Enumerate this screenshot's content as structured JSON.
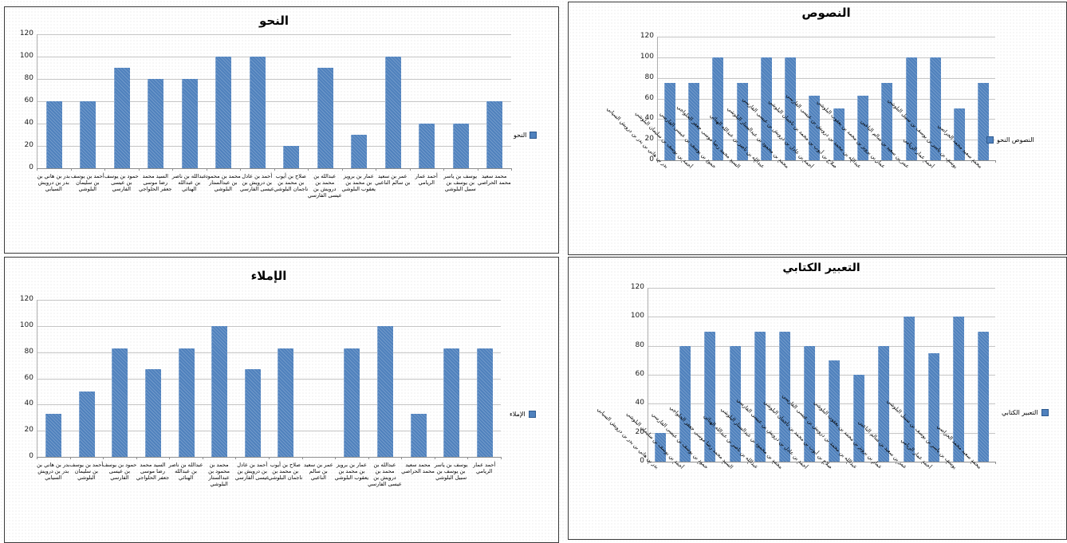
{
  "colors": {
    "bar": "#4f81bd",
    "grid": "#c6c6c6",
    "axis": "#8f8f8f",
    "panel_border": "#3a3a3a",
    "text": "#000000"
  },
  "students_forward": [
    "بدر بن هاني بن بدر بن درويش السيابي",
    "أحمد بن يوسف بن سليمان البلوشي",
    "حمود بن يوسف بن عيسى الفارسي",
    "السيد محمد رضا موسى جعفر الحلواجي",
    "عبدالله بن ناصر بن عبدالله الهنائي",
    "محمد بن محمود بن عبدالستار البلوشي",
    "أحمد بن عادل بن درويش بن عيسى الفارسي",
    "صلاح بن أيوب بن محمد بن ناجمان البلوشي",
    "عبدالله بن محمد بن درويش بن عيسى الفارسي",
    "عمار بن برويز بن محمد بن يعقوب البلوشي",
    "عمر بن سعيد بن سالم الناعبي",
    "أحمد عمار الريامي",
    "يوسف بن ياسر بن يوسف بن سبيل البلوشي",
    "محمد سعيد محمد الحراصي"
  ],
  "chart_data": [
    {
      "type": "bar",
      "title": "النحو",
      "legend": "النحو",
      "legend_marker_side": "left",
      "label_style": "stacked",
      "ylim": [
        0,
        120
      ],
      "yticks": [
        0,
        20,
        40,
        60,
        80,
        100,
        120
      ],
      "grid": true,
      "legend_position": "right-middle",
      "categories": [
        "بدر بن هاني بن بدر بن درويش السيابي",
        "أحمد بن يوسف بن سليمان البلوشي",
        "حمود بن يوسف بن عيسى الفارسي",
        "السيد محمد رضا موسى جعفر الحلواجي",
        "عبدالله بن ناصر بن عبدالله الهنائي",
        "محمد بن محمود بن عبدالستار البلوشي",
        "أحمد بن عادل بن درويش بن عيسى الفارسي",
        "صلاح بن أيوب بن محمد بن ناجمان البلوشي",
        "عبدالله بن محمد بن درويش بن عيسى الفارسي",
        "عمار بن برويز بن محمد بن يعقوب البلوشي",
        "عمر بن سعيد بن سالم الناعبي",
        "أحمد عمار الريامي",
        "يوسف بن ياسر بن يوسف بن سبيل البلوشي",
        "محمد سعيد محمد الحراصي"
      ],
      "values": [
        60,
        60,
        90,
        80,
        80,
        100,
        100,
        20,
        90,
        30,
        100,
        40,
        40,
        60
      ]
    },
    {
      "type": "bar",
      "title": "النصوص",
      "legend": "النصوص النحو",
      "legend_marker_side": "right",
      "label_style": "rotated",
      "ylim": [
        0,
        120
      ],
      "yticks": [
        0,
        20,
        40,
        60,
        80,
        100,
        120
      ],
      "grid": true,
      "legend_position": "right-middle",
      "categories": [
        "بدر بن هاني بن بدر بن درويش السيابي",
        "أحمد بن يوسف بن سليمان البلوشي",
        "حمود بن يوسف بن عيسى الفارسي",
        "السيد محمد رضا موسى جعفر الحلواجي",
        "عبدالله بن ناصر بن عبدالله الهنائي",
        "محمد بن محمود بن عبدالستار البلوشي",
        "أحمد بن عادل بن درويش بن عيسى الفارسي",
        "صلاح بن أيوب بن محمد بن ناجمان البلوشي",
        "عبدالله بن محمد بن درويش بن عيسى الفارسي",
        "عمار بن برويز بن محمد بن يعقوب البلوشي",
        "عمر بن سعيد بن سالم الناعبي",
        "أحمد عمار الريامي",
        "يوسف بن ياسر بن يوسف بن سبيل البلوشي",
        "محمد سعيد محمد الحراصي"
      ],
      "values": [
        75,
        75,
        100,
        75,
        100,
        100,
        63,
        50,
        63,
        75,
        100,
        100,
        50,
        75
      ]
    },
    {
      "type": "bar",
      "title": "الإملاء",
      "legend": "الإملاء",
      "legend_marker_side": "left",
      "label_style": "stacked",
      "ylim": [
        0,
        120
      ],
      "yticks": [
        0,
        20,
        40,
        60,
        80,
        100,
        120
      ],
      "grid": true,
      "legend_position": "right-middle",
      "categories": [
        "بدر بن هاني بن بدر بن درويش السيابي",
        "أحمد بن يوسف بن سليمان البلوشي",
        "حمود بن يوسف بن عيسى الفارسي",
        "السيد محمد رضا موسى جعفر الحلواجي",
        "عبدالله بن ناصر بن عبدالله الهنائي",
        "محمد بن محمود بن عبدالستار البلوشي",
        "أحمد بن عادل بن درويش بن عيسى الفارسي",
        "صلاح بن أيوب بن محمد بن ناجمان البلوشي",
        "عمر بن سعيد بن سالم الناعبي",
        "عمار بن برويز بن محمد بن يعقوب البلوشي",
        "عبدالله بن محمد بن درويش بن عيسى الفارسي",
        "محمد سعيد محمد الحراصي",
        "يوسف بن ياسر بن يوسف بن سبيل البلوشي",
        "أحمد عمار الريامي"
      ],
      "values": [
        33,
        50,
        83,
        67,
        83,
        100,
        67,
        83,
        0,
        83,
        100,
        33,
        83,
        83
      ]
    },
    {
      "type": "bar",
      "title": "التعبير الكتابي",
      "legend": "التعبير الكتابي",
      "legend_marker_side": "left",
      "label_style": "rotated",
      "ylim": [
        0,
        120
      ],
      "yticks": [
        0,
        20,
        40,
        60,
        80,
        100,
        120
      ],
      "grid": true,
      "legend_position": "right-middle",
      "categories": [
        "بدر بن هاني بن بدر بن درويش السيابي",
        "أحمد بن يوسف بن سليمان البلوشي",
        "حمود بن يوسف بن عيسى الفارسي",
        "السيد محمد رضا موسى جعفر الحلواجي",
        "عبدالله بن ناصر بن عبدالله الهنائي",
        "محمد بن محمود بن عبدالستار البلوشي",
        "أحمد بن عادل بن درويش بن عيسى الفارسي",
        "صلاح بن أيوب بن محمد بن ناجمان البلوشي",
        "عبدالله بن محمد بن درويش بن عيسى الفارسي",
        "عمار بن برويز بن محمد بن يعقوب البلوشي",
        "عمر بن سعيد بن سالم الناعبي",
        "أحمد عمار الريامي",
        "يوسف بن ياسر بن يوسف بن سبيل البلوشي",
        "محمد سعيد محمد الحراصي"
      ],
      "values": [
        20,
        80,
        90,
        80,
        90,
        90,
        80,
        70,
        60,
        80,
        100,
        75,
        100,
        90
      ]
    }
  ]
}
